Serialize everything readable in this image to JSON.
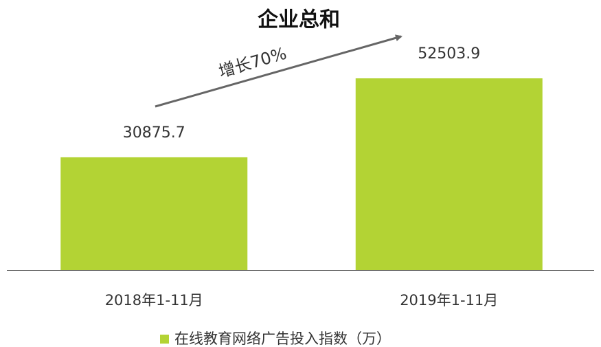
{
  "chart_data": {
    "type": "bar",
    "title": "企业总和",
    "categories": [
      "2018年1-11月",
      "2019年1-11月"
    ],
    "series": [
      {
        "name": "在线教育网络广告投入指数（万）",
        "color": "#b3d334",
        "values": [
          30875.7,
          52503.9
        ]
      }
    ],
    "annotations": [
      "增长70%"
    ],
    "legend": "bottom"
  }
}
